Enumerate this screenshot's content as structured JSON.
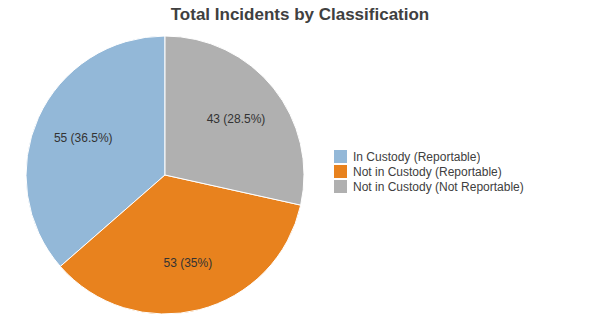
{
  "chart_data": {
    "type": "pie",
    "title": "Total Incidents by Classification",
    "categories": [
      "In Custody (Reportable)",
      "Not in Custody (Reportable)",
      "Not in Custody (Not Reportable)"
    ],
    "values": [
      55,
      53,
      43
    ],
    "value_labels": [
      "55 (36.5%)",
      "53 (35%)",
      "43 (28.5%)"
    ],
    "colors": [
      "#93b8d8",
      "#e8821e",
      "#b0b0b0"
    ],
    "data_labels": true,
    "legend": "right"
  }
}
